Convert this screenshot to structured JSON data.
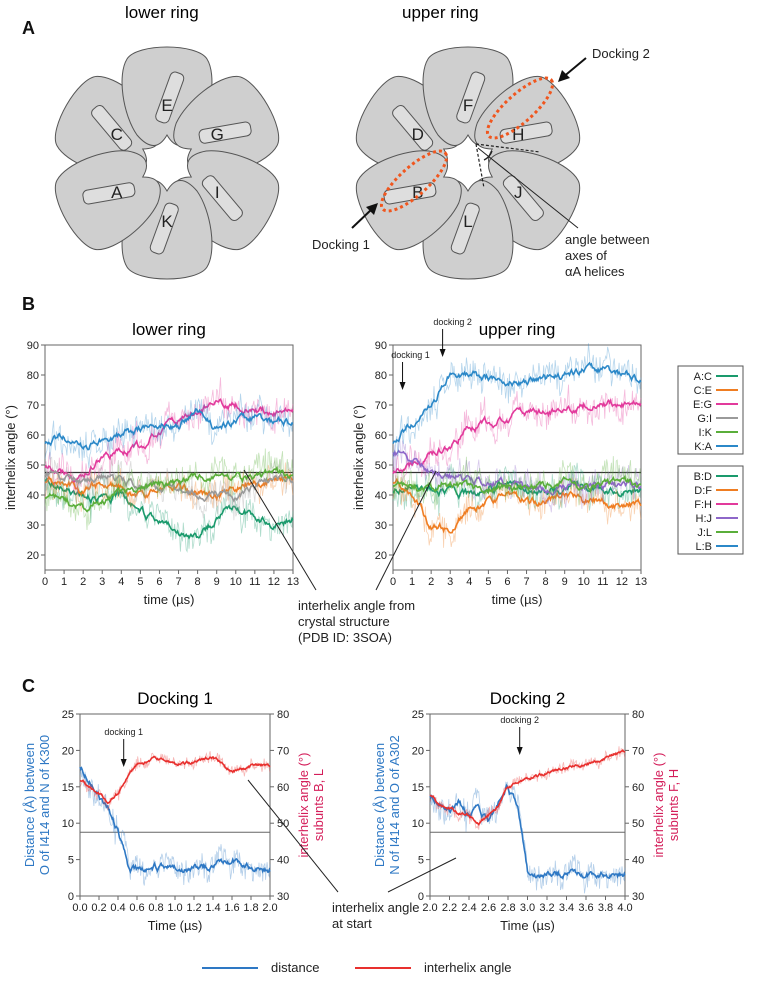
{
  "panel_labels": {
    "a": "A",
    "b": "B",
    "c": "C"
  },
  "panel_a": {
    "lower_title": "lower ring",
    "upper_title": "upper ring",
    "lower_subunits": [
      "C",
      "E",
      "G",
      "I",
      "K",
      "A"
    ],
    "upper_subunits": [
      "D",
      "F",
      "H",
      "J",
      "L",
      "B"
    ],
    "docking1": "Docking 1",
    "docking2": "Docking 2",
    "angle_note": [
      "angle between",
      "axes of",
      "αA helices"
    ]
  },
  "panel_b_legend": {
    "lower": [
      {
        "label": "A:C",
        "color": "#1a9a6c"
      },
      {
        "label": "C:E",
        "color": "#ef7d22"
      },
      {
        "label": "E:G",
        "color": "#e23a9c"
      },
      {
        "label": "G:I",
        "color": "#9a9a9a"
      },
      {
        "label": "I:K",
        "color": "#5aae3a"
      },
      {
        "label": "K:A",
        "color": "#2b88c8"
      }
    ],
    "upper": [
      {
        "label": "B:D",
        "color": "#1a9a6c"
      },
      {
        "label": "D:F",
        "color": "#ef7d22"
      },
      {
        "label": "F:H",
        "color": "#e23a9c"
      },
      {
        "label": "H:J",
        "color": "#8e67c9"
      },
      {
        "label": "J:L",
        "color": "#5aae3a"
      },
      {
        "label": "L:B",
        "color": "#2b88c8"
      }
    ]
  },
  "panel_b_crystal_note": [
    "interhelix angle from",
    "crystal structure",
    "(PDB ID: 3SOA)"
  ],
  "panel_c_start_note": [
    "interhelix angle",
    "at start"
  ],
  "bottom_legend": {
    "distance": "distance",
    "angle": "interhelix angle"
  },
  "chart_data": [
    {
      "type": "line",
      "title": "lower ring",
      "xlabel": "time (µs)",
      "ylabel": "interhelix angle (°)",
      "xlim": [
        0,
        13
      ],
      "ylim": [
        15,
        90
      ],
      "xticks": [
        0,
        1,
        2,
        3,
        4,
        5,
        6,
        7,
        8,
        9,
        10,
        11,
        12,
        13
      ],
      "yticks": [
        20,
        30,
        40,
        50,
        60,
        70,
        80,
        90
      ],
      "reference_line": 47.5,
      "x": [
        0,
        1,
        2,
        3,
        4,
        5,
        6,
        7,
        8,
        9,
        10,
        11,
        12,
        13
      ],
      "series": [
        {
          "name": "A:C",
          "color": "#1a9a6c",
          "values": [
            46,
            43,
            40,
            38,
            40,
            35,
            30,
            28,
            26,
            32,
            36,
            33,
            30,
            32
          ]
        },
        {
          "name": "C:E",
          "color": "#ef7d22",
          "values": [
            45,
            44,
            42,
            44,
            42,
            40,
            41,
            43,
            41,
            39,
            42,
            44,
            45,
            46
          ]
        },
        {
          "name": "E:G",
          "color": "#e23a9c",
          "values": [
            50,
            47,
            46,
            53,
            54,
            56,
            62,
            65,
            68,
            70,
            70,
            68,
            68,
            68
          ]
        },
        {
          "name": "G:I",
          "color": "#9a9a9a",
          "values": [
            48,
            46,
            45,
            46,
            45,
            43,
            42,
            41,
            40,
            41,
            40,
            43,
            45,
            45
          ]
        },
        {
          "name": "I:K",
          "color": "#5aae3a",
          "values": [
            40,
            38,
            36,
            38,
            40,
            42,
            44,
            44,
            46,
            45,
            46,
            45,
            47,
            46
          ]
        },
        {
          "name": "K:A",
          "color": "#2b88c8",
          "values": [
            58,
            60,
            56,
            58,
            60,
            62,
            64,
            63,
            68,
            62,
            64,
            66,
            64,
            64
          ]
        }
      ]
    },
    {
      "type": "line",
      "title": "upper ring",
      "xlabel": "time (µs)",
      "ylabel": "interhelix angle (°)",
      "xlim": [
        0,
        13
      ],
      "ylim": [
        15,
        90
      ],
      "xticks": [
        0,
        1,
        2,
        3,
        4,
        5,
        6,
        7,
        8,
        9,
        10,
        11,
        12,
        13
      ],
      "yticks": [
        20,
        30,
        40,
        50,
        60,
        70,
        80,
        90
      ],
      "reference_line": 47.5,
      "annotations": [
        {
          "text": "docking 1",
          "x": 0.5
        },
        {
          "text": "docking 2",
          "x": 2.6
        }
      ],
      "x": [
        0,
        1,
        2,
        3,
        4,
        5,
        6,
        7,
        8,
        9,
        10,
        11,
        12,
        13
      ],
      "series": [
        {
          "name": "B:D",
          "color": "#1a9a6c",
          "values": [
            42,
            44,
            42,
            41,
            40,
            42,
            43,
            42,
            41,
            42,
            43,
            42,
            41,
            42
          ]
        },
        {
          "name": "D:F",
          "color": "#ef7d22",
          "values": [
            45,
            40,
            30,
            28,
            35,
            38,
            40,
            38,
            38,
            40,
            38,
            38,
            36,
            38
          ]
        },
        {
          "name": "F:H",
          "color": "#e23a9c",
          "values": [
            48,
            50,
            54,
            56,
            62,
            64,
            66,
            68,
            68,
            67,
            70,
            70,
            71,
            70
          ]
        },
        {
          "name": "H:J",
          "color": "#8e67c9",
          "values": [
            55,
            52,
            48,
            46,
            45,
            44,
            43,
            42,
            42,
            43,
            44,
            43,
            43,
            43
          ]
        },
        {
          "name": "J:L",
          "color": "#5aae3a",
          "values": [
            44,
            42,
            43,
            44,
            42,
            41,
            43,
            42,
            43,
            44,
            42,
            43,
            44,
            43
          ]
        },
        {
          "name": "L:B",
          "color": "#2b88c8",
          "values": [
            58,
            64,
            70,
            80,
            80,
            79,
            78,
            78,
            79,
            80,
            81,
            82,
            80,
            78
          ]
        }
      ]
    },
    {
      "type": "line",
      "title": "Docking 1",
      "xlabel": "Time (µs)",
      "ylabel_left": "Distance  (Å) between O of I414 and N of K300",
      "ylabel_right": "interhelix angle (°) subunts B, L",
      "xlim": [
        0,
        2
      ],
      "ylim_left": [
        0,
        25
      ],
      "ylim_right": [
        30,
        80
      ],
      "xticks": [
        0.0,
        0.2,
        0.4,
        0.6,
        0.8,
        1.0,
        1.2,
        1.4,
        1.6,
        1.8,
        2.0
      ],
      "yticks_left": [
        0,
        5,
        10,
        15,
        20,
        25
      ],
      "yticks_right": [
        30,
        40,
        50,
        60,
        70,
        80
      ],
      "reference_line_right": 47.5,
      "annotation": {
        "text": "docking 1",
        "x": 0.46
      },
      "x": [
        0.0,
        0.1,
        0.2,
        0.3,
        0.4,
        0.5,
        0.6,
        0.8,
        1.0,
        1.2,
        1.4,
        1.6,
        1.8,
        2.0
      ],
      "series": [
        {
          "name": "distance",
          "axis": "left",
          "color": "#2e78c4",
          "values": [
            18,
            16,
            14,
            12,
            9,
            4,
            3.5,
            4,
            3.5,
            4,
            4,
            5,
            4,
            3.5
          ]
        },
        {
          "name": "interhelix angle",
          "axis": "right",
          "color": "#e8302e",
          "values": [
            62,
            60,
            58,
            56,
            58,
            63,
            66,
            68,
            66,
            67,
            68,
            64,
            66,
            66
          ]
        }
      ]
    },
    {
      "type": "line",
      "title": "Docking 2",
      "xlabel": "Time (µs)",
      "ylabel_left": "Distance  (Å) between N of I414 and O of A302",
      "ylabel_right": "interhelix angle (°) subunts F, H",
      "xlim": [
        2,
        4
      ],
      "ylim_left": [
        0,
        25
      ],
      "ylim_right": [
        30,
        80
      ],
      "xticks": [
        2.0,
        2.2,
        2.4,
        2.6,
        2.8,
        3.0,
        3.2,
        3.4,
        3.6,
        3.8,
        4.0
      ],
      "yticks_left": [
        0,
        5,
        10,
        15,
        20,
        25
      ],
      "yticks_right": [
        30,
        40,
        50,
        60,
        70,
        80
      ],
      "reference_line_right": 47.5,
      "annotation": {
        "text": "docking 2",
        "x": 2.92
      },
      "x": [
        2.0,
        2.1,
        2.2,
        2.3,
        2.4,
        2.5,
        2.6,
        2.7,
        2.8,
        2.9,
        3.0,
        3.2,
        3.4,
        3.6,
        3.8,
        4.0
      ],
      "series": [
        {
          "name": "distance",
          "axis": "left",
          "color": "#2e78c4",
          "values": [
            14,
            13,
            12,
            13,
            11,
            12,
            10,
            13,
            15,
            12,
            3,
            3,
            3,
            3,
            3,
            3
          ]
        },
        {
          "name": "interhelix angle",
          "axis": "right",
          "color": "#e8302e",
          "values": [
            58,
            55,
            54,
            53,
            52,
            50,
            52,
            55,
            60,
            61,
            62,
            64,
            65,
            66,
            68,
            70
          ]
        }
      ]
    }
  ]
}
